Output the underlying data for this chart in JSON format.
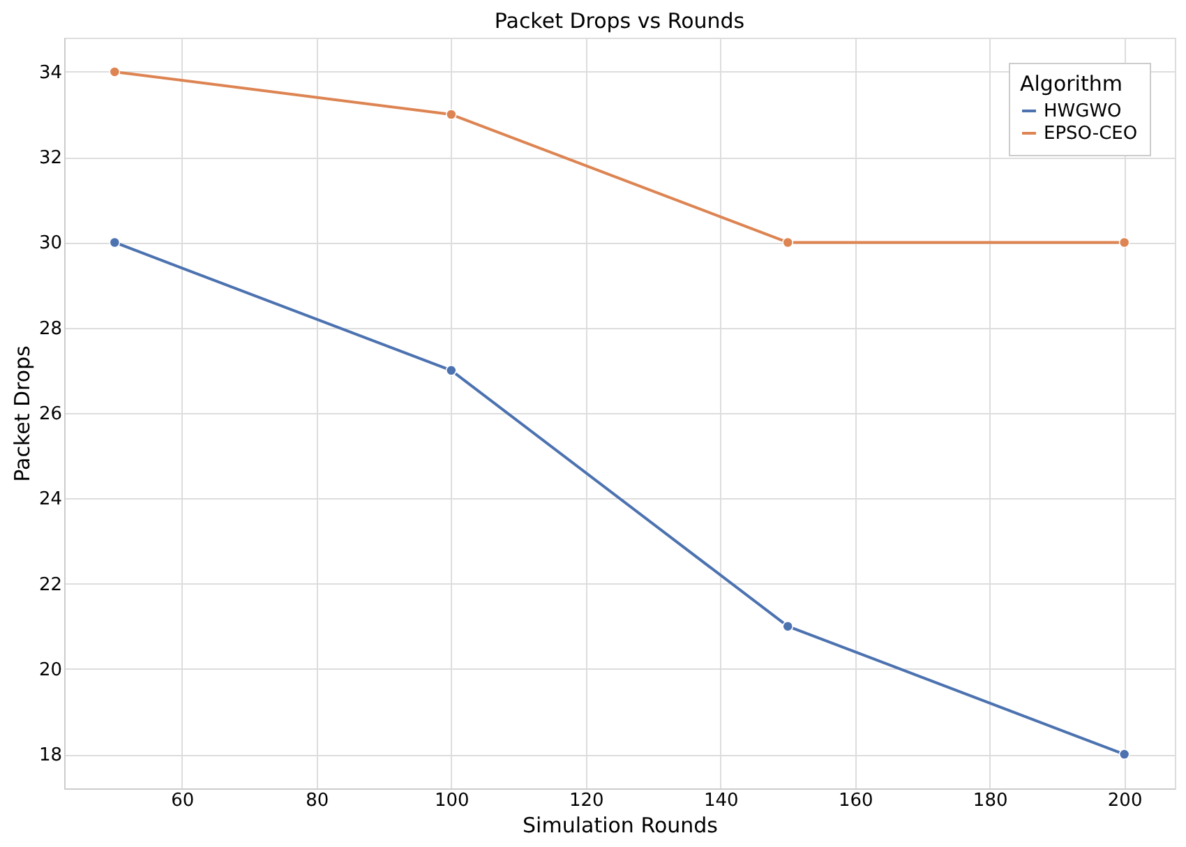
{
  "chart_data": {
    "type": "line",
    "title": "Packet Drops vs Rounds",
    "xlabel": "Simulation Rounds",
    "ylabel": "Packet Drops",
    "legend_title": "Algorithm",
    "x": [
      50,
      100,
      150,
      200
    ],
    "series": [
      {
        "name": "HWGWO",
        "color": "#4c72b0",
        "values": [
          30,
          27,
          21,
          18
        ]
      },
      {
        "name": "EPSO-CEO",
        "color": "#dd8452",
        "values": [
          34,
          33,
          30,
          30
        ]
      }
    ],
    "xlim": [
      42.5,
      207.5
    ],
    "xticks": [
      60,
      80,
      100,
      120,
      140,
      160,
      180,
      200
    ],
    "ylim": [
      17.2,
      34.8
    ],
    "yticks": [
      18,
      20,
      22,
      24,
      26,
      28,
      30,
      32,
      34
    ],
    "grid": true,
    "legend": "top right",
    "marker": "circle",
    "line_style": "solid"
  }
}
